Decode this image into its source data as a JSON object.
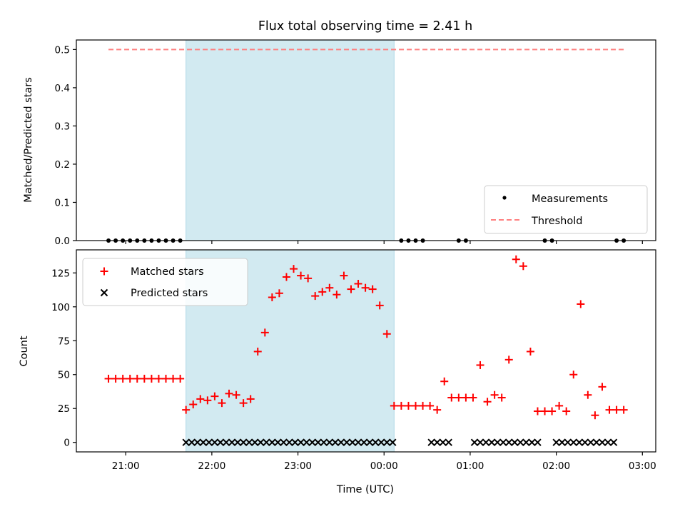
{
  "chart_data": [
    {
      "type": "scatter",
      "title": "Flux total observing time = 2.41 h",
      "xlabel": "",
      "ylabel": "Matched/Predicted stars",
      "ylim": [
        0,
        0.525
      ],
      "yticks": [
        "0.0",
        "0.1",
        "0.2",
        "0.3",
        "0.4",
        "0.5"
      ],
      "ytick_values": [
        0,
        0.1,
        0.2,
        0.3,
        0.4,
        0.5
      ],
      "shaded_span": [
        "21:42",
        "00:07"
      ],
      "shaded_color": "#add8e6",
      "threshold": {
        "name": "Threshold",
        "value": 0.5,
        "x_range": [
          "20:48",
          "02:48"
        ],
        "color": "#ff7f7f"
      },
      "series": [
        {
          "name": "Measurements",
          "marker": "dot",
          "color": "#000000",
          "x": [
            "20:48",
            "20:53",
            "20:58",
            "21:03",
            "21:08",
            "21:13",
            "21:18",
            "21:23",
            "21:28",
            "21:33",
            "21:38",
            "00:12",
            "00:17",
            "00:22",
            "00:27",
            "00:52",
            "00:57",
            "01:52",
            "01:57",
            "02:42",
            "02:47"
          ],
          "y": [
            0,
            0,
            0,
            0,
            0,
            0,
            0,
            0,
            0,
            0,
            0,
            0,
            0,
            0,
            0,
            0,
            0,
            0,
            0,
            0,
            0
          ]
        }
      ],
      "legend": "lower-right",
      "legend_entries": [
        "Measurements",
        "Threshold"
      ]
    },
    {
      "type": "scatter",
      "xlabel": "Time (UTC)",
      "ylabel": "Count",
      "ylim": [
        -7,
        142
      ],
      "yticks": [
        "0",
        "25",
        "50",
        "75",
        "100",
        "125"
      ],
      "ytick_values": [
        0,
        25,
        50,
        75,
        100,
        125
      ],
      "xticks": [
        "21:00",
        "22:00",
        "23:00",
        "00:00",
        "01:00",
        "02:00",
        "03:00"
      ],
      "shaded_span": [
        "21:42",
        "00:07"
      ],
      "shaded_color": "#add8e6",
      "series": [
        {
          "name": "Matched stars",
          "marker": "plus",
          "color": "#ff0000",
          "x": [
            "20:48",
            "20:53",
            "20:58",
            "21:03",
            "21:08",
            "21:13",
            "21:18",
            "21:23",
            "21:28",
            "21:33",
            "21:38",
            "21:42",
            "21:47",
            "21:52",
            "21:57",
            "22:02",
            "22:07",
            "22:12",
            "22:17",
            "22:22",
            "22:27",
            "22:32",
            "22:37",
            "22:42",
            "22:47",
            "22:52",
            "22:57",
            "23:02",
            "23:07",
            "23:12",
            "23:17",
            "23:22",
            "23:27",
            "23:32",
            "23:37",
            "23:42",
            "23:47",
            "23:52",
            "23:57",
            "00:02",
            "00:07",
            "00:12",
            "00:17",
            "00:22",
            "00:27",
            "00:32",
            "00:37",
            "00:42",
            "00:47",
            "00:52",
            "00:57",
            "01:02",
            "01:07",
            "01:12",
            "01:17",
            "01:22",
            "01:27",
            "01:32",
            "01:37",
            "01:42",
            "01:47",
            "01:52",
            "01:57",
            "02:02",
            "02:07",
            "02:12",
            "02:17",
            "02:22",
            "02:27",
            "02:32",
            "02:37",
            "02:42",
            "02:47"
          ],
          "y": [
            47,
            47,
            47,
            47,
            47,
            47,
            47,
            47,
            47,
            47,
            47,
            24,
            28,
            32,
            31,
            34,
            29,
            36,
            35,
            29,
            32,
            67,
            81,
            107,
            110,
            122,
            128,
            123,
            121,
            108,
            111,
            114,
            109,
            123,
            113,
            117,
            114,
            113,
            101,
            80,
            27,
            27,
            27,
            27,
            27,
            27,
            24,
            45,
            33,
            33,
            33,
            33,
            57,
            30,
            35,
            33,
            61,
            135,
            130,
            67,
            23,
            23,
            23,
            27,
            23,
            50,
            102,
            35,
            20,
            41,
            24,
            24,
            24
          ]
        },
        {
          "name": "Predicted stars",
          "marker": "x",
          "color": "#000000",
          "x": [
            "21:42",
            "21:46",
            "21:50",
            "21:54",
            "21:58",
            "22:02",
            "22:06",
            "22:10",
            "22:14",
            "22:18",
            "22:22",
            "22:26",
            "22:30",
            "22:34",
            "22:38",
            "22:42",
            "22:46",
            "22:50",
            "22:54",
            "22:58",
            "23:02",
            "23:06",
            "23:10",
            "23:14",
            "23:18",
            "23:22",
            "23:26",
            "23:30",
            "23:34",
            "23:38",
            "23:42",
            "23:46",
            "23:50",
            "23:54",
            "23:58",
            "00:02",
            "00:06",
            "00:33",
            "00:37",
            "00:41",
            "00:45",
            "01:03",
            "01:07",
            "01:11",
            "01:15",
            "01:19",
            "01:23",
            "01:27",
            "01:31",
            "01:35",
            "01:39",
            "01:43",
            "01:47",
            "02:00",
            "02:04",
            "02:08",
            "02:12",
            "02:16",
            "02:20",
            "02:24",
            "02:28",
            "02:32",
            "02:36",
            "02:40"
          ],
          "y": [
            0,
            0,
            0,
            0,
            0,
            0,
            0,
            0,
            0,
            0,
            0,
            0,
            0,
            0,
            0,
            0,
            0,
            0,
            0,
            0,
            0,
            0,
            0,
            0,
            0,
            0,
            0,
            0,
            0,
            0,
            0,
            0,
            0,
            0,
            0,
            0,
            0,
            0,
            0,
            0,
            0,
            0,
            0,
            0,
            0,
            0,
            0,
            0,
            0,
            0,
            0,
            0,
            0,
            0,
            0,
            0,
            0,
            0,
            0,
            0,
            0,
            0,
            0,
            0
          ]
        }
      ],
      "legend": "upper-left",
      "legend_entries": [
        "Matched stars",
        "Predicted stars"
      ]
    }
  ]
}
